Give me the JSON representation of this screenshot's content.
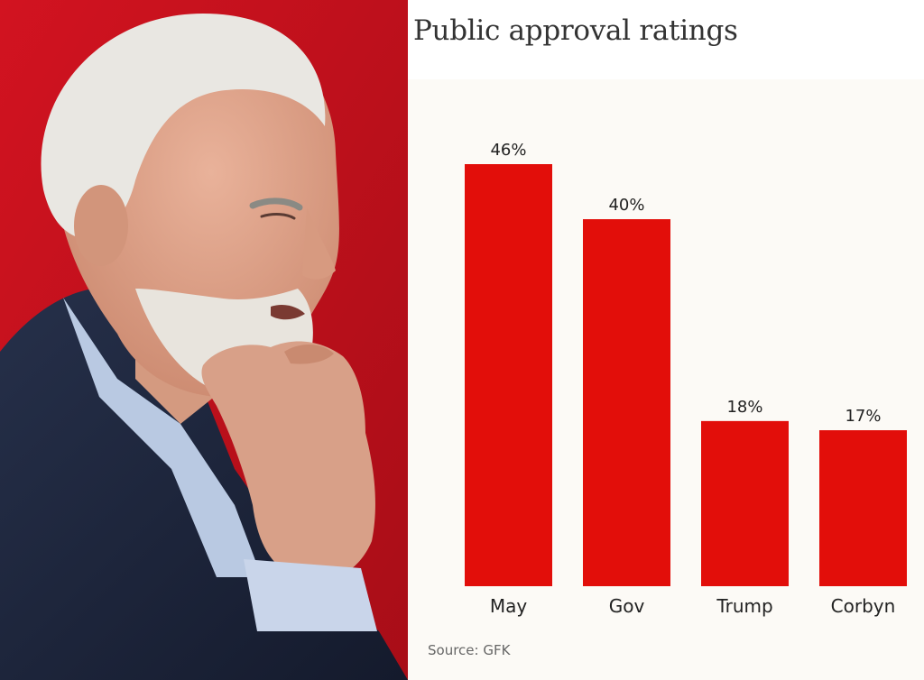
{
  "chart_data": {
    "type": "bar",
    "title": "Public approval ratings",
    "categories": [
      "May",
      "Gov",
      "Trump",
      "Corbyn"
    ],
    "values": [
      46,
      40,
      18,
      17
    ],
    "value_labels": [
      "46%",
      "40%",
      "18%",
      "17%"
    ],
    "xlabel": "",
    "ylabel": "",
    "ylim": [
      0,
      46
    ],
    "grid": false,
    "legend": "none",
    "source": "Source: GFK"
  },
  "colors": {
    "bar": "#e20e0a",
    "photo_background": "#c0101a",
    "plot_background": "#fcfaf6"
  }
}
